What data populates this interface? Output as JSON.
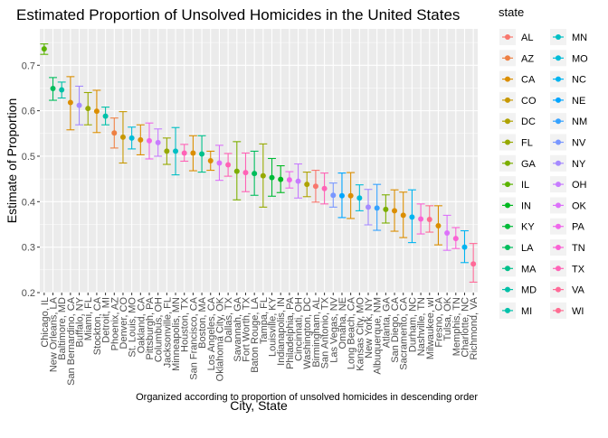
{
  "chart_data": {
    "type": "scatter",
    "title": "Estimated Proportion of Unsolved Homicides in the United States",
    "xlabel": "City, State",
    "ylabel": "Estimate of Proportion",
    "caption": "Organized according to proportion of unsolved homicides in descending order",
    "ylim": [
      0.2,
      0.78
    ],
    "yticks": [
      0.2,
      0.3,
      0.4,
      0.5,
      0.6,
      0.7
    ],
    "grid": true,
    "error_bars": true,
    "legend": {
      "title": "state",
      "position": "right",
      "entries": [
        {
          "label": "AL",
          "color": "#F8766D"
        },
        {
          "label": "AZ",
          "color": "#EE8043"
        },
        {
          "label": "CA",
          "color": "#DB8E00"
        },
        {
          "label": "CO",
          "color": "#C79800"
        },
        {
          "label": "DC",
          "color": "#AEA200"
        },
        {
          "label": "FL",
          "color": "#96A900"
        },
        {
          "label": "GA",
          "color": "#7CAE00"
        },
        {
          "label": "IL",
          "color": "#5BB300"
        },
        {
          "label": "IN",
          "color": "#00B81F"
        },
        {
          "label": "KY",
          "color": "#00BA38"
        },
        {
          "label": "LA",
          "color": "#00BD5C"
        },
        {
          "label": "MA",
          "color": "#00C08B"
        },
        {
          "label": "MD",
          "color": "#00C0A7"
        },
        {
          "label": "MI",
          "color": "#00C1AA"
        },
        {
          "label": "MN",
          "color": "#00BFC4"
        },
        {
          "label": "MO",
          "color": "#00BCD8"
        },
        {
          "label": "NC",
          "color": "#00B4F0"
        },
        {
          "label": "NE",
          "color": "#00A5FF"
        },
        {
          "label": "NM",
          "color": "#35A2FF"
        },
        {
          "label": "NV",
          "color": "#7997FF"
        },
        {
          "label": "NY",
          "color": "#A58AFF"
        },
        {
          "label": "OH",
          "color": "#C77CFF"
        },
        {
          "label": "OK",
          "color": "#DC71FA"
        },
        {
          "label": "PA",
          "color": "#EF67EB"
        },
        {
          "label": "TN",
          "color": "#FA62D4"
        },
        {
          "label": "TX",
          "color": "#FF63B6"
        },
        {
          "label": "VA",
          "color": "#FF6A98"
        },
        {
          "label": "WI",
          "color": "#FF6C91"
        }
      ]
    },
    "points": [
      {
        "city": "Chicago, IL",
        "state": "IL",
        "est": 0.736,
        "lo": 0.724,
        "hi": 0.747
      },
      {
        "city": "New Orleans, LA",
        "state": "LA",
        "est": 0.649,
        "lo": 0.623,
        "hi": 0.673
      },
      {
        "city": "Baltimore, MD",
        "state": "MD",
        "est": 0.646,
        "lo": 0.628,
        "hi": 0.663
      },
      {
        "city": "San Bernardino, CA",
        "state": "CA",
        "est": 0.618,
        "lo": 0.558,
        "hi": 0.675
      },
      {
        "city": "Buffalo, NY",
        "state": "NY",
        "est": 0.612,
        "lo": 0.569,
        "hi": 0.654
      },
      {
        "city": "Miami, FL",
        "state": "FL",
        "est": 0.605,
        "lo": 0.569,
        "hi": 0.64
      },
      {
        "city": "Stockton, CA",
        "state": "CA",
        "est": 0.599,
        "lo": 0.552,
        "hi": 0.645
      },
      {
        "city": "Detroit, MI",
        "state": "MI",
        "est": 0.588,
        "lo": 0.569,
        "hi": 0.608
      },
      {
        "city": "Phoenix, AZ",
        "state": "AZ",
        "est": 0.551,
        "lo": 0.518,
        "hi": 0.584
      },
      {
        "city": "Denver, CO",
        "state": "CO",
        "est": 0.542,
        "lo": 0.485,
        "hi": 0.598
      },
      {
        "city": "St. Louis, MO",
        "state": "MO",
        "est": 0.54,
        "lo": 0.516,
        "hi": 0.564
      },
      {
        "city": "Oakland, CA",
        "state": "CA",
        "est": 0.536,
        "lo": 0.503,
        "hi": 0.569
      },
      {
        "city": "Pittsburgh, PA",
        "state": "PA",
        "est": 0.534,
        "lo": 0.494,
        "hi": 0.573
      },
      {
        "city": "Columbus, OH",
        "state": "OH",
        "est": 0.53,
        "lo": 0.5,
        "hi": 0.56
      },
      {
        "city": "Jacksonville, FL",
        "state": "FL",
        "est": 0.511,
        "lo": 0.482,
        "hi": 0.54
      },
      {
        "city": "Minneapolis, MN",
        "state": "MN",
        "est": 0.511,
        "lo": 0.459,
        "hi": 0.563
      },
      {
        "city": "Houston, TX",
        "state": "TX",
        "est": 0.507,
        "lo": 0.489,
        "hi": 0.526
      },
      {
        "city": "San Francisco, CA",
        "state": "CA",
        "est": 0.507,
        "lo": 0.468,
        "hi": 0.545
      },
      {
        "city": "Boston, MA",
        "state": "MA",
        "est": 0.505,
        "lo": 0.465,
        "hi": 0.545
      },
      {
        "city": "Los Angeles, CA",
        "state": "CA",
        "est": 0.49,
        "lo": 0.469,
        "hi": 0.511
      },
      {
        "city": "Oklahoma City, OK",
        "state": "OK",
        "est": 0.485,
        "lo": 0.447,
        "hi": 0.524
      },
      {
        "city": "Dallas, TX",
        "state": "TX",
        "est": 0.481,
        "lo": 0.456,
        "hi": 0.506
      },
      {
        "city": "Savannah, GA",
        "state": "GA",
        "est": 0.467,
        "lo": 0.404,
        "hi": 0.532
      },
      {
        "city": "Fort Worth, TX",
        "state": "TX",
        "est": 0.464,
        "lo": 0.422,
        "hi": 0.507
      },
      {
        "city": "Baton Rouge, LA",
        "state": "LA",
        "est": 0.462,
        "lo": 0.414,
        "hi": 0.511
      },
      {
        "city": "Tampa, FL",
        "state": "FL",
        "est": 0.457,
        "lo": 0.388,
        "hi": 0.527
      },
      {
        "city": "Louisville, KY",
        "state": "KY",
        "est": 0.453,
        "lo": 0.412,
        "hi": 0.495
      },
      {
        "city": "Indianapolis, IN",
        "state": "IN",
        "est": 0.449,
        "lo": 0.42,
        "hi": 0.479
      },
      {
        "city": "Philadelphia, PA",
        "state": "PA",
        "est": 0.448,
        "lo": 0.43,
        "hi": 0.466
      },
      {
        "city": "Cincinnati, OH",
        "state": "OH",
        "est": 0.445,
        "lo": 0.408,
        "hi": 0.483
      },
      {
        "city": "Washington, DC",
        "state": "DC",
        "est": 0.438,
        "lo": 0.411,
        "hi": 0.465
      },
      {
        "city": "Birmingham, AL",
        "state": "AL",
        "est": 0.434,
        "lo": 0.399,
        "hi": 0.469
      },
      {
        "city": "San Antonio, TX",
        "state": "TX",
        "est": 0.429,
        "lo": 0.395,
        "hi": 0.463
      },
      {
        "city": "Las Vegas, NV",
        "state": "NV",
        "est": 0.414,
        "lo": 0.388,
        "hi": 0.441
      },
      {
        "city": "Omaha, NE",
        "state": "NE",
        "est": 0.413,
        "lo": 0.365,
        "hi": 0.463
      },
      {
        "city": "Long Beach, CA",
        "state": "CA",
        "est": 0.413,
        "lo": 0.363,
        "hi": 0.464
      },
      {
        "city": "Kansas City, MO",
        "state": "MO",
        "est": 0.408,
        "lo": 0.38,
        "hi": 0.437
      },
      {
        "city": "New York, NY",
        "state": "NY",
        "est": 0.388,
        "lo": 0.349,
        "hi": 0.427
      },
      {
        "city": "Albuquerque, NM",
        "state": "NM",
        "est": 0.386,
        "lo": 0.337,
        "hi": 0.438
      },
      {
        "city": "Atlanta, GA",
        "state": "GA",
        "est": 0.383,
        "lo": 0.353,
        "hi": 0.415
      },
      {
        "city": "San Diego, CA",
        "state": "CA",
        "est": 0.38,
        "lo": 0.335,
        "hi": 0.426
      },
      {
        "city": "Sacramento, CA",
        "state": "CA",
        "est": 0.37,
        "lo": 0.321,
        "hi": 0.421
      },
      {
        "city": "Durham, NC",
        "state": "NC",
        "est": 0.366,
        "lo": 0.31,
        "hi": 0.426
      },
      {
        "city": "Nashville, TN",
        "state": "TN",
        "est": 0.362,
        "lo": 0.329,
        "hi": 0.395
      },
      {
        "city": "Milwaukee, wI",
        "state": "WI",
        "est": 0.361,
        "lo": 0.333,
        "hi": 0.391
      },
      {
        "city": "Fresno, CA",
        "state": "CA",
        "est": 0.347,
        "lo": 0.305,
        "hi": 0.391
      },
      {
        "city": "Tulsa, OK",
        "state": "OK",
        "est": 0.331,
        "lo": 0.293,
        "hi": 0.37
      },
      {
        "city": "Memphis, TN",
        "state": "TN",
        "est": 0.319,
        "lo": 0.297,
        "hi": 0.343
      },
      {
        "city": "Charlotte, NC",
        "state": "NC",
        "est": 0.3,
        "lo": 0.266,
        "hi": 0.336
      },
      {
        "city": "Richmond, VA",
        "state": "VA",
        "est": 0.263,
        "lo": 0.223,
        "hi": 0.308
      }
    ]
  }
}
